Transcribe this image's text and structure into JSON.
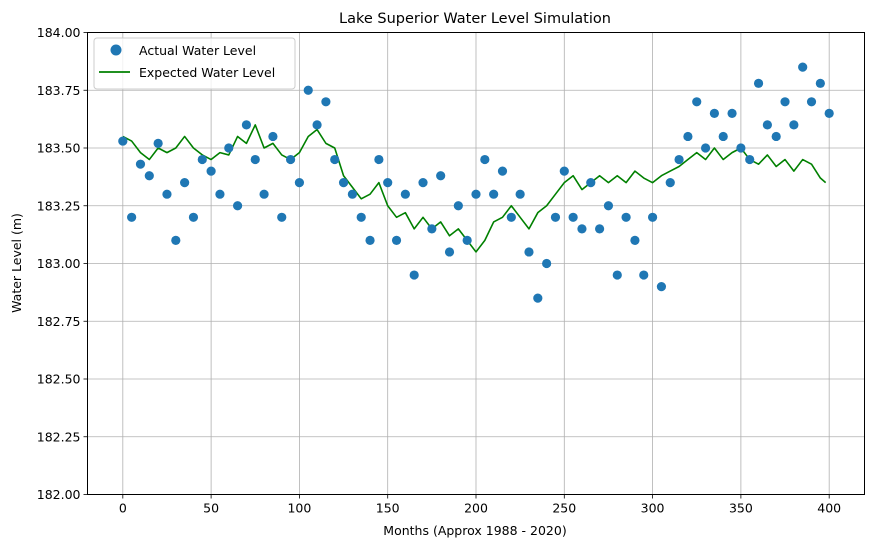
{
  "chart_data": {
    "type": "scatter",
    "title": "Lake Superior Water Level Simulation",
    "xlabel": "Months (Approx 1988 - 2020)",
    "ylabel": "Water Level (m)",
    "xlim": [
      -20,
      420
    ],
    "ylim": [
      182.0,
      184.0
    ],
    "grid": true,
    "legend_position": "top-left",
    "x_ticks": [
      0,
      50,
      100,
      150,
      200,
      250,
      300,
      350,
      400
    ],
    "y_ticks": [
      182.0,
      182.25,
      182.5,
      182.75,
      183.0,
      183.25,
      183.5,
      183.75,
      184.0
    ],
    "x_tick_labels": [
      "0",
      "50",
      "100",
      "150",
      "200",
      "250",
      "300",
      "350",
      "400"
    ],
    "y_tick_labels": [
      "182.00",
      "182.25",
      "182.50",
      "182.75",
      "183.00",
      "183.25",
      "183.50",
      "183.75",
      "184.00"
    ],
    "series": [
      {
        "name": "Actual Water Level",
        "kind": "scatter",
        "color": "#1f77b4",
        "x": [
          0,
          5,
          10,
          15,
          20,
          25,
          30,
          35,
          40,
          45,
          50,
          55,
          60,
          65,
          70,
          75,
          80,
          85,
          90,
          95,
          100,
          105,
          110,
          115,
          120,
          125,
          130,
          135,
          140,
          145,
          150,
          155,
          160,
          165,
          170,
          175,
          180,
          185,
          190,
          195,
          200,
          205,
          210,
          215,
          220,
          225,
          230,
          235,
          240,
          245,
          250,
          255,
          260,
          265,
          270,
          275,
          280,
          285,
          290,
          295,
          300,
          305,
          310,
          315,
          320,
          325,
          330,
          335,
          340,
          345,
          350,
          355,
          360,
          365,
          370,
          375,
          380,
          385,
          390,
          395,
          400
        ],
        "y": [
          183.53,
          183.2,
          183.43,
          183.38,
          183.52,
          183.3,
          183.1,
          183.35,
          183.2,
          183.45,
          183.4,
          183.3,
          183.5,
          183.25,
          183.6,
          183.45,
          183.3,
          183.55,
          183.2,
          183.45,
          183.35,
          183.75,
          183.6,
          183.7,
          183.45,
          183.35,
          183.3,
          183.2,
          183.1,
          183.45,
          183.35,
          183.1,
          183.3,
          182.95,
          183.35,
          183.15,
          183.38,
          183.05,
          183.25,
          183.1,
          183.3,
          183.45,
          183.3,
          183.4,
          183.2,
          183.3,
          183.05,
          182.85,
          183.0,
          183.2,
          183.4,
          183.2,
          183.15,
          183.35,
          183.15,
          183.25,
          182.95,
          183.2,
          183.1,
          182.95,
          183.2,
          182.9,
          183.35,
          183.45,
          183.55,
          183.7,
          183.5,
          183.65,
          183.55,
          183.65,
          183.5,
          183.45,
          183.78,
          183.6,
          183.55,
          183.7,
          183.6,
          183.85,
          183.7,
          183.78,
          183.65
        ]
      },
      {
        "name": "Expected Water Level",
        "kind": "line",
        "color": "#008000",
        "x": [
          0,
          5,
          10,
          15,
          20,
          25,
          30,
          35,
          40,
          45,
          50,
          55,
          60,
          65,
          70,
          75,
          80,
          85,
          90,
          95,
          100,
          105,
          110,
          115,
          120,
          125,
          130,
          135,
          140,
          145,
          150,
          155,
          160,
          165,
          170,
          175,
          180,
          185,
          190,
          195,
          200,
          205,
          210,
          215,
          220,
          225,
          230,
          235,
          240,
          245,
          250,
          255,
          260,
          265,
          270,
          275,
          280,
          285,
          290,
          295,
          300,
          305,
          310,
          315,
          320,
          325,
          330,
          335,
          340,
          345,
          350,
          355,
          360,
          365,
          370,
          375,
          380,
          385,
          390,
          395,
          398
        ],
        "y": [
          183.55,
          183.53,
          183.48,
          183.45,
          183.5,
          183.48,
          183.5,
          183.55,
          183.5,
          183.47,
          183.45,
          183.48,
          183.47,
          183.55,
          183.52,
          183.6,
          183.5,
          183.52,
          183.47,
          183.45,
          183.48,
          183.55,
          183.58,
          183.52,
          183.5,
          183.38,
          183.33,
          183.28,
          183.3,
          183.35,
          183.25,
          183.2,
          183.22,
          183.15,
          183.2,
          183.15,
          183.18,
          183.12,
          183.15,
          183.1,
          183.05,
          183.1,
          183.18,
          183.2,
          183.25,
          183.2,
          183.15,
          183.22,
          183.25,
          183.3,
          183.35,
          183.38,
          183.32,
          183.35,
          183.38,
          183.35,
          183.38,
          183.35,
          183.4,
          183.37,
          183.35,
          183.38,
          183.4,
          183.42,
          183.45,
          183.48,
          183.45,
          183.5,
          183.45,
          183.48,
          183.5,
          183.45,
          183.43,
          183.47,
          183.42,
          183.45,
          183.4,
          183.45,
          183.43,
          183.37,
          183.35
        ]
      }
    ]
  }
}
